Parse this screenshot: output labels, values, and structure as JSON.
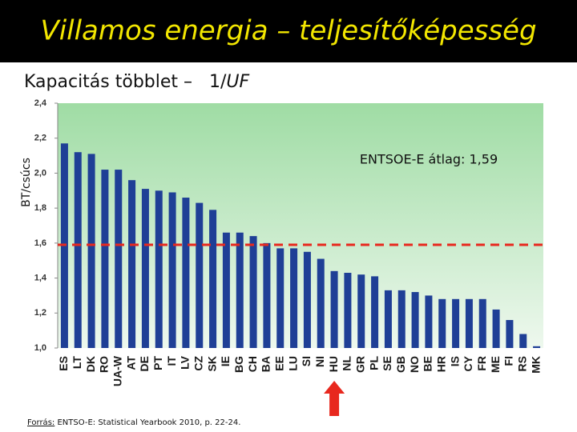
{
  "chart_data": {
    "type": "bar",
    "title": "Villamos energia – teljesítőképesség",
    "subtitle": "Kapacitás többlet –   1/",
    "subtitle_italic": "UF",
    "y_label": "BT/csúcs",
    "annotation": "ENTSOE-E átlag: 1,59",
    "source_label": "Forrás:",
    "source": " ENTSO-E: Statistical Yearbook 2010, p. 22-24.",
    "categories": [
      "ES",
      "LT",
      "DK",
      "RO",
      "UA-W",
      "AT",
      "DE",
      "PT",
      "IT",
      "LV",
      "CZ",
      "SK",
      "IE",
      "BG",
      "CH",
      "BA",
      "EE",
      "LU",
      "SI",
      "NI",
      "HU",
      "NL",
      "GR",
      "PL",
      "SE",
      "GB",
      "NO",
      "BE",
      "HR",
      "IS",
      "CY",
      "FR",
      "ME",
      "FI",
      "RS",
      "MK"
    ],
    "values": [
      2.17,
      2.12,
      2.11,
      2.02,
      2.02,
      1.96,
      1.91,
      1.9,
      1.89,
      1.86,
      1.83,
      1.79,
      1.66,
      1.66,
      1.64,
      1.6,
      1.57,
      1.57,
      1.55,
      1.51,
      1.44,
      1.43,
      1.42,
      1.41,
      1.33,
      1.33,
      1.32,
      1.3,
      1.28,
      1.28,
      1.28,
      1.28,
      1.22,
      1.16,
      1.08,
      1.01
    ],
    "color": "#1f3f96",
    "highlight_index": 20,
    "highlight_color": "#e8281e",
    "reference_line": {
      "value": 1.59,
      "color": "#e8281e"
    },
    "ylim": [
      1.0,
      2.4
    ],
    "yticks": [
      {
        "value": 1.0,
        "label": "1,0"
      },
      {
        "value": 1.2,
        "label": "1,2"
      },
      {
        "value": 1.4,
        "label": "1,4"
      },
      {
        "value": 1.6,
        "label": "1,6"
      },
      {
        "value": 1.8,
        "label": "1,8"
      },
      {
        "value": 2.0,
        "label": "2,0"
      },
      {
        "value": 2.2,
        "label": "2,2"
      },
      {
        "value": 2.4,
        "label": "2,4"
      }
    ]
  }
}
